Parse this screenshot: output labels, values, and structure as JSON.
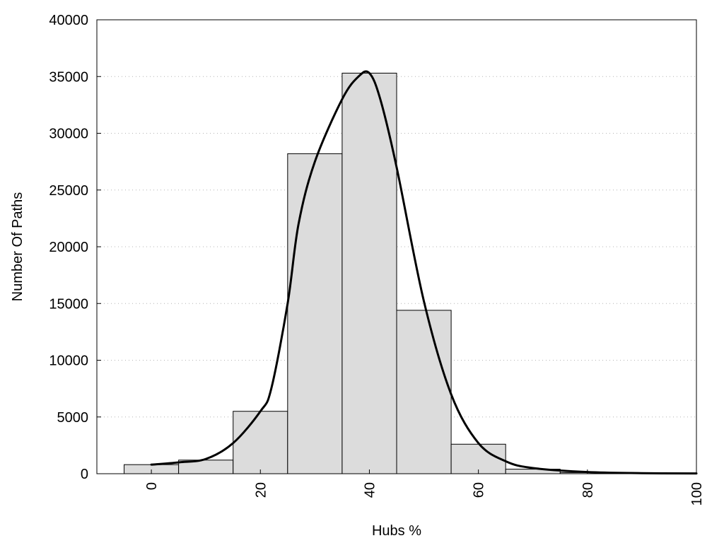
{
  "chart_data": {
    "type": "bar",
    "title": "",
    "xlabel": "Hubs %",
    "ylabel": "Number Of Paths",
    "xlim": [
      -10,
      100
    ],
    "ylim": [
      0,
      40000
    ],
    "grid": "horizontal dotted",
    "x_ticks": [
      "0",
      "20",
      "40",
      "60",
      "80",
      "100"
    ],
    "y_ticks": [
      "0",
      "5000",
      "10000",
      "15000",
      "20000",
      "25000",
      "30000",
      "35000",
      "40000"
    ],
    "bin_width": 10,
    "bins": [
      {
        "center": 0,
        "value": 800
      },
      {
        "center": 10,
        "value": 1200
      },
      {
        "center": 20,
        "value": 5500
      },
      {
        "center": 30,
        "value": 28200
      },
      {
        "center": 40,
        "value": 35300
      },
      {
        "center": 50,
        "value": 14400
      },
      {
        "center": 60,
        "value": 2600
      },
      {
        "center": 70,
        "value": 400
      },
      {
        "center": 80,
        "value": 100
      },
      {
        "center": 90,
        "value": 50
      },
      {
        "center": 100,
        "value": 20
      }
    ],
    "curve": [
      {
        "x": 0,
        "y": 800
      },
      {
        "x": 5,
        "y": 1000
      },
      {
        "x": 10,
        "y": 1300
      },
      {
        "x": 15,
        "y": 2700
      },
      {
        "x": 20,
        "y": 5500
      },
      {
        "x": 22,
        "y": 7500
      },
      {
        "x": 25,
        "y": 15000
      },
      {
        "x": 27,
        "y": 22000
      },
      {
        "x": 30,
        "y": 27500
      },
      {
        "x": 35,
        "y": 33000
      },
      {
        "x": 38,
        "y": 35000
      },
      {
        "x": 40,
        "y": 35300
      },
      {
        "x": 42,
        "y": 33000
      },
      {
        "x": 45,
        "y": 27000
      },
      {
        "x": 50,
        "y": 15200
      },
      {
        "x": 55,
        "y": 7000
      },
      {
        "x": 60,
        "y": 2700
      },
      {
        "x": 65,
        "y": 1100
      },
      {
        "x": 70,
        "y": 500
      },
      {
        "x": 80,
        "y": 150
      },
      {
        "x": 90,
        "y": 50
      },
      {
        "x": 100,
        "y": 20
      }
    ]
  }
}
